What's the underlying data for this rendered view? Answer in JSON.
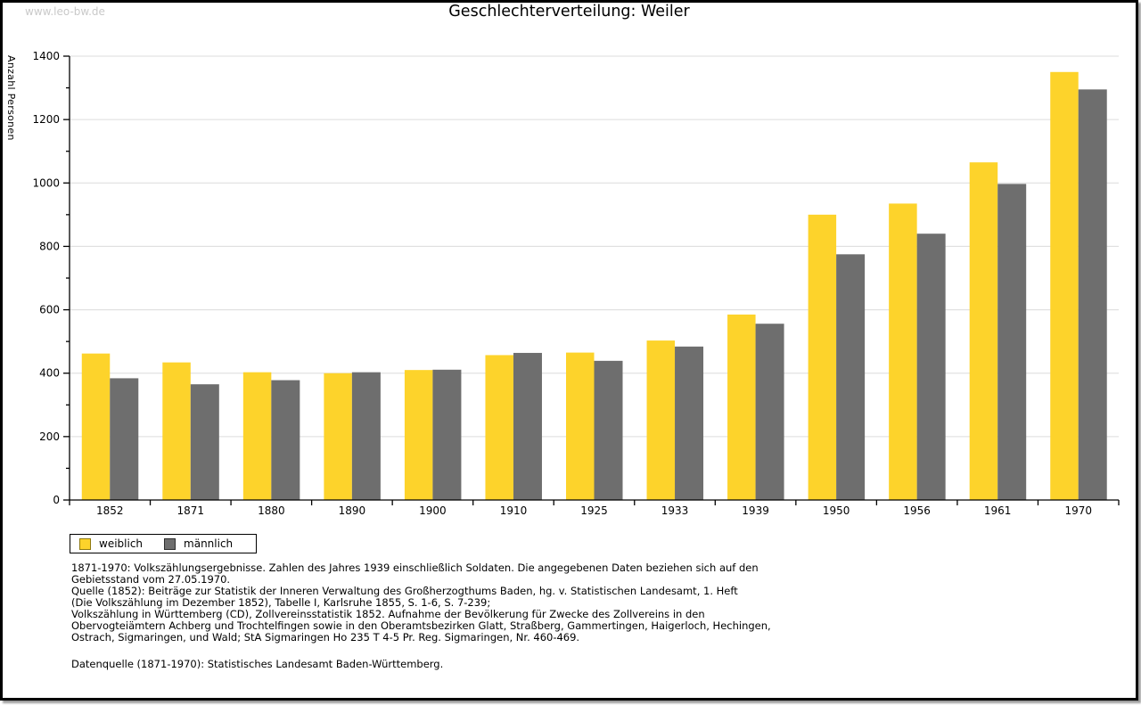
{
  "watermark": "www.leo-bw.de",
  "chart_data": {
    "type": "bar",
    "title": "Geschlechterverteilung: Weiler",
    "ylabel": "Anzahl Personen",
    "categories": [
      "1852",
      "1871",
      "1880",
      "1890",
      "1900",
      "1910",
      "1925",
      "1933",
      "1939",
      "1950",
      "1956",
      "1961",
      "1970"
    ],
    "series": [
      {
        "name": "weiblich",
        "color": "#FDD32B",
        "values": [
          462,
          434,
          403,
          400,
          410,
          457,
          465,
          503,
          585,
          900,
          935,
          1065,
          1350
        ]
      },
      {
        "name": "männlich",
        "color": "#6E6E6E",
        "values": [
          384,
          365,
          378,
          403,
          411,
          464,
          439,
          484,
          556,
          775,
          840,
          997,
          1295
        ]
      }
    ],
    "ylim": [
      0,
      1400
    ],
    "ytick_step": 200,
    "ytick_minor_step": 100,
    "grid": true,
    "gridline_color": "#dcdcdc",
    "axis_color": "#000000",
    "legend_position": "bottom-left"
  },
  "footnotes": {
    "lines": [
      "1871-1970: Volkszählungsergebnisse. Zahlen des Jahres 1939 einschließlich Soldaten. Die angegebenen Daten beziehen sich auf den",
      "Gebietsstand vom 27.05.1970.",
      "Quelle (1852): Beiträge zur Statistik der Inneren Verwaltung des Großherzogthums Baden, hg. v. Statistischen Landesamt, 1. Heft",
      "(Die Volkszählung im Dezember 1852), Tabelle I, Karlsruhe 1855, S. 1-6, S. 7-239;",
      "Volkszählung in Württemberg (CD), Zollvereinsstatistik 1852. Aufnahme der Bevölkerung für Zwecke des Zollvereins in den",
      "Obervogteiämtern Achberg und Trochtelfingen sowie in den Oberamtsbezirken Glatt, Straßberg, Gammertingen, Haigerloch, Hechingen,",
      "Ostrach, Sigmaringen, und Wald; StA Sigmaringen Ho 235 T 4-5 Pr. Reg. Sigmaringen, Nr. 460-469."
    ],
    "datasource": "Datenquelle (1871-1970): Statistisches Landesamt Baden-Württemberg."
  }
}
